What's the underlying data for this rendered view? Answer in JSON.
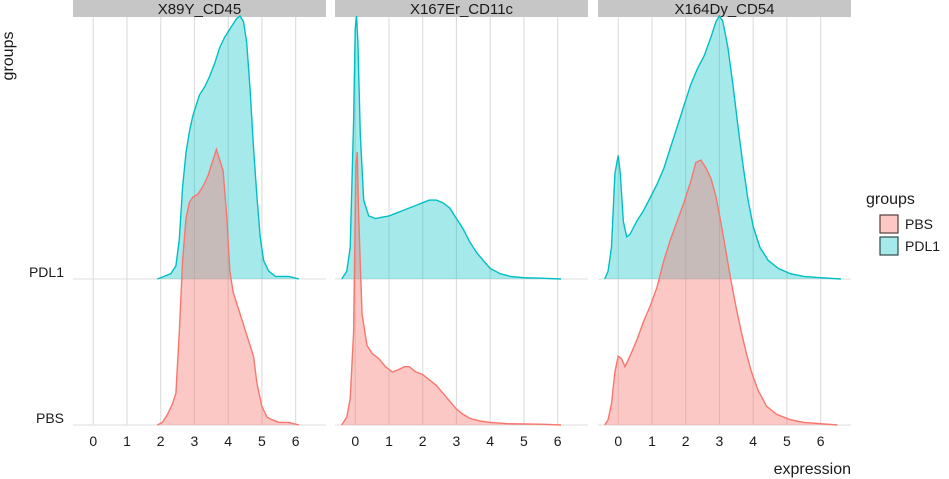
{
  "chart_data": {
    "type": "ridgeline",
    "xlabel": "expression",
    "ylabel": "groups",
    "legend": {
      "title": "groups",
      "position": "right",
      "items": [
        {
          "name": "PBS",
          "fill": "#f8766d",
          "fill_alpha": 0.4,
          "stroke": "#f8766d"
        },
        {
          "name": "PDL1",
          "fill": "#00bfc4",
          "fill_alpha": 0.35,
          "stroke": "#00bfc4"
        }
      ]
    },
    "y_categories": [
      "PBS",
      "PDL1"
    ],
    "x_ticks": [
      0,
      1,
      2,
      3,
      4,
      5,
      6
    ],
    "xlim": [
      -0.6,
      6.9
    ],
    "grid": true,
    "panels": [
      {
        "title": "X89Y_CD45",
        "series": [
          {
            "name": "PBS",
            "points": [
              [
                1.9,
                0
              ],
              [
                2.05,
                0.01
              ],
              [
                2.2,
                0.04
              ],
              [
                2.35,
                0.08
              ],
              [
                2.45,
                0.12
              ],
              [
                2.55,
                0.35
              ],
              [
                2.65,
                0.62
              ],
              [
                2.75,
                0.78
              ],
              [
                2.85,
                0.84
              ],
              [
                2.95,
                0.86
              ],
              [
                3.1,
                0.87
              ],
              [
                3.25,
                0.9
              ],
              [
                3.4,
                0.94
              ],
              [
                3.55,
                1.0
              ],
              [
                3.65,
                1.04
              ],
              [
                3.75,
                1.0
              ],
              [
                3.85,
                0.96
              ],
              [
                3.95,
                0.8
              ],
              [
                4.05,
                0.58
              ],
              [
                4.15,
                0.5
              ],
              [
                4.25,
                0.46
              ],
              [
                4.35,
                0.42
              ],
              [
                4.45,
                0.38
              ],
              [
                4.55,
                0.34
              ],
              [
                4.65,
                0.3
              ],
              [
                4.75,
                0.26
              ],
              [
                4.85,
                0.16
              ],
              [
                5.0,
                0.07
              ],
              [
                5.15,
                0.03
              ],
              [
                5.3,
                0.02
              ],
              [
                5.5,
                0.01
              ],
              [
                5.8,
                0.01
              ],
              [
                6.1,
                0
              ]
            ]
          },
          {
            "name": "PDL1",
            "points": [
              [
                1.9,
                0
              ],
              [
                2.1,
                0.01
              ],
              [
                2.3,
                0.02
              ],
              [
                2.45,
                0.05
              ],
              [
                2.55,
                0.15
              ],
              [
                2.65,
                0.35
              ],
              [
                2.75,
                0.48
              ],
              [
                2.85,
                0.56
              ],
              [
                2.95,
                0.62
              ],
              [
                3.05,
                0.66
              ],
              [
                3.15,
                0.7
              ],
              [
                3.3,
                0.73
              ],
              [
                3.45,
                0.77
              ],
              [
                3.6,
                0.82
              ],
              [
                3.75,
                0.88
              ],
              [
                3.9,
                0.92
              ],
              [
                4.0,
                0.94
              ],
              [
                4.1,
                0.96
              ],
              [
                4.25,
                0.99
              ],
              [
                4.35,
                1.0
              ],
              [
                4.45,
                0.98
              ],
              [
                4.55,
                0.9
              ],
              [
                4.65,
                0.72
              ],
              [
                4.75,
                0.5
              ],
              [
                4.85,
                0.32
              ],
              [
                4.95,
                0.16
              ],
              [
                5.05,
                0.07
              ],
              [
                5.2,
                0.03
              ],
              [
                5.4,
                0.01
              ],
              [
                5.8,
                0.01
              ],
              [
                6.1,
                0
              ]
            ]
          }
        ]
      },
      {
        "title": "X167Er_CD11c",
        "series": [
          {
            "name": "PBS",
            "points": [
              [
                -0.4,
                0
              ],
              [
                -0.25,
                0.03
              ],
              [
                -0.15,
                0.1
              ],
              [
                -0.05,
                0.35
              ],
              [
                0.02,
                0.98
              ],
              [
                0.06,
                1.03
              ],
              [
                0.1,
                0.8
              ],
              [
                0.2,
                0.42
              ],
              [
                0.35,
                0.3
              ],
              [
                0.5,
                0.27
              ],
              [
                0.7,
                0.25
              ],
              [
                0.9,
                0.22
              ],
              [
                1.1,
                0.2
              ],
              [
                1.3,
                0.21
              ],
              [
                1.45,
                0.22
              ],
              [
                1.6,
                0.22
              ],
              [
                1.8,
                0.2
              ],
              [
                2.0,
                0.19
              ],
              [
                2.2,
                0.17
              ],
              [
                2.4,
                0.15
              ],
              [
                2.6,
                0.12
              ],
              [
                2.8,
                0.09
              ],
              [
                3.0,
                0.06
              ],
              [
                3.2,
                0.04
              ],
              [
                3.4,
                0.025
              ],
              [
                3.7,
                0.015
              ],
              [
                4.0,
                0.01
              ],
              [
                4.5,
                0.005
              ],
              [
                5.0,
                0.004
              ],
              [
                5.5,
                0.003
              ],
              [
                6.1,
                0
              ]
            ]
          },
          {
            "name": "PDL1",
            "points": [
              [
                -0.4,
                0
              ],
              [
                -0.25,
                0.03
              ],
              [
                -0.15,
                0.12
              ],
              [
                -0.05,
                0.6
              ],
              [
                0.0,
                0.95
              ],
              [
                0.04,
                1.0
              ],
              [
                0.08,
                0.9
              ],
              [
                0.15,
                0.55
              ],
              [
                0.25,
                0.3
              ],
              [
                0.4,
                0.24
              ],
              [
                0.6,
                0.23
              ],
              [
                0.8,
                0.235
              ],
              [
                1.0,
                0.24
              ],
              [
                1.2,
                0.25
              ],
              [
                1.4,
                0.26
              ],
              [
                1.6,
                0.27
              ],
              [
                1.8,
                0.28
              ],
              [
                2.0,
                0.29
              ],
              [
                2.2,
                0.3
              ],
              [
                2.4,
                0.3
              ],
              [
                2.6,
                0.29
              ],
              [
                2.8,
                0.27
              ],
              [
                3.0,
                0.23
              ],
              [
                3.2,
                0.19
              ],
              [
                3.4,
                0.14
              ],
              [
                3.6,
                0.1
              ],
              [
                3.8,
                0.07
              ],
              [
                4.0,
                0.04
              ],
              [
                4.3,
                0.02
              ],
              [
                4.6,
                0.01
              ],
              [
                5.0,
                0.005
              ],
              [
                5.5,
                0.003
              ],
              [
                6.1,
                0
              ]
            ]
          }
        ]
      },
      {
        "title": "X164Dy_CD54",
        "series": [
          {
            "name": "PBS",
            "points": [
              [
                -0.4,
                0
              ],
              [
                -0.3,
                0.02
              ],
              [
                -0.2,
                0.08
              ],
              [
                -0.1,
                0.2
              ],
              [
                0.0,
                0.26
              ],
              [
                0.1,
                0.25
              ],
              [
                0.2,
                0.22
              ],
              [
                0.35,
                0.26
              ],
              [
                0.55,
                0.32
              ],
              [
                0.75,
                0.39
              ],
              [
                0.95,
                0.45
              ],
              [
                1.15,
                0.52
              ],
              [
                1.35,
                0.62
              ],
              [
                1.55,
                0.7
              ],
              [
                1.75,
                0.77
              ],
              [
                1.95,
                0.84
              ],
              [
                2.15,
                0.92
              ],
              [
                2.3,
                0.99
              ],
              [
                2.45,
                1.0
              ],
              [
                2.6,
                0.97
              ],
              [
                2.75,
                0.93
              ],
              [
                2.9,
                0.86
              ],
              [
                3.05,
                0.76
              ],
              [
                3.2,
                0.65
              ],
              [
                3.35,
                0.54
              ],
              [
                3.5,
                0.44
              ],
              [
                3.65,
                0.35
              ],
              [
                3.8,
                0.27
              ],
              [
                3.95,
                0.2
              ],
              [
                4.15,
                0.13
              ],
              [
                4.4,
                0.07
              ],
              [
                4.7,
                0.04
              ],
              [
                5.1,
                0.02
              ],
              [
                5.5,
                0.01
              ],
              [
                6.0,
                0.005
              ],
              [
                6.5,
                0
              ]
            ]
          },
          {
            "name": "PDL1",
            "points": [
              [
                -0.4,
                0
              ],
              [
                -0.3,
                0.03
              ],
              [
                -0.2,
                0.12
              ],
              [
                -0.1,
                0.4
              ],
              [
                0.0,
                0.47
              ],
              [
                0.06,
                0.4
              ],
              [
                0.15,
                0.22
              ],
              [
                0.25,
                0.16
              ],
              [
                0.35,
                0.17
              ],
              [
                0.55,
                0.22
              ],
              [
                0.75,
                0.26
              ],
              [
                0.95,
                0.31
              ],
              [
                1.15,
                0.36
              ],
              [
                1.35,
                0.42
              ],
              [
                1.55,
                0.5
              ],
              [
                1.75,
                0.58
              ],
              [
                1.95,
                0.66
              ],
              [
                2.15,
                0.74
              ],
              [
                2.35,
                0.8
              ],
              [
                2.55,
                0.85
              ],
              [
                2.75,
                0.92
              ],
              [
                2.9,
                0.98
              ],
              [
                3.0,
                1.0
              ],
              [
                3.1,
                0.98
              ],
              [
                3.25,
                0.88
              ],
              [
                3.4,
                0.74
              ],
              [
                3.55,
                0.58
              ],
              [
                3.7,
                0.43
              ],
              [
                3.85,
                0.3
              ],
              [
                4.0,
                0.2
              ],
              [
                4.2,
                0.12
              ],
              [
                4.45,
                0.07
              ],
              [
                4.75,
                0.04
              ],
              [
                5.1,
                0.02
              ],
              [
                5.5,
                0.01
              ],
              [
                6.0,
                0.005
              ],
              [
                6.6,
                0
              ]
            ]
          }
        ]
      }
    ]
  }
}
